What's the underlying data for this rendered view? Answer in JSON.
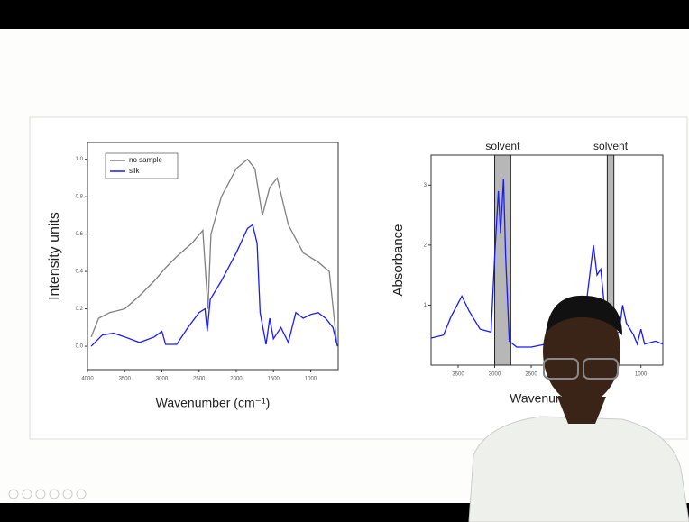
{
  "chart_data": [
    {
      "type": "line",
      "xlabel": "Wavenumber (cm⁻¹)",
      "ylabel": "Intensity units",
      "xlim": [
        4000,
        630
      ],
      "ylim": [
        -0.125,
        1.09
      ],
      "xticks": [
        4000,
        3500,
        3000,
        2500,
        2000,
        1500,
        1000
      ],
      "yticks": [
        {
          "value": 0,
          "label": "0.0"
        },
        0.2,
        0.4,
        0.6,
        0.8,
        {
          "value": 1,
          "label": "1.0"
        }
      ],
      "legend": "top-left",
      "series": [
        {
          "name": "no sample",
          "color": "#808080",
          "x": [
            3950,
            3850,
            3700,
            3500,
            3300,
            3100,
            2950,
            2800,
            2600,
            2450,
            2380,
            2340,
            2200,
            2000,
            1850,
            1750,
            1650,
            1550,
            1450,
            1300,
            1100,
            900,
            750,
            650
          ],
          "values": [
            0.05,
            0.15,
            0.18,
            0.2,
            0.27,
            0.35,
            0.42,
            0.48,
            0.55,
            0.62,
            0.2,
            0.6,
            0.8,
            0.95,
            1.0,
            0.95,
            0.7,
            0.85,
            0.9,
            0.65,
            0.5,
            0.45,
            0.4,
            0.02
          ]
        },
        {
          "name": "silk",
          "color": "#1a1aff",
          "x": [
            3950,
            3800,
            3650,
            3500,
            3300,
            3100,
            3000,
            2950,
            2800,
            2650,
            2500,
            2420,
            2390,
            2350,
            2200,
            2000,
            1850,
            1780,
            1720,
            1680,
            1600,
            1550,
            1500,
            1400,
            1300,
            1200,
            1100,
            1000,
            900,
            800,
            700,
            640
          ],
          "values": [
            0.0,
            0.06,
            0.07,
            0.05,
            0.02,
            0.05,
            0.08,
            0.01,
            0.01,
            0.1,
            0.18,
            0.2,
            0.08,
            0.25,
            0.35,
            0.5,
            0.63,
            0.65,
            0.55,
            0.18,
            0.01,
            0.15,
            0.04,
            0.1,
            0.02,
            0.18,
            0.15,
            0.17,
            0.18,
            0.15,
            0.1,
            0.0
          ]
        }
      ]
    },
    {
      "type": "line",
      "xlabel": "Wavenumber",
      "ylabel": "Absorbance",
      "xlim": [
        3870,
        700
      ],
      "ylim": [
        0,
        3.5
      ],
      "xticks": [
        3500,
        3000,
        2500,
        1000
      ],
      "yticks": [
        1,
        2,
        3
      ],
      "bands": [
        {
          "label": "solvent",
          "range": [
            3000,
            2780
          ]
        },
        {
          "label": "solvent",
          "range": [
            1460,
            1370
          ]
        }
      ],
      "series": [
        {
          "color": "#1a1aff",
          "x": [
            3870,
            3700,
            3600,
            3450,
            3350,
            3200,
            3050,
            3000,
            2950,
            2920,
            2880,
            2850,
            2800,
            2700,
            2500,
            2300,
            2100,
            1900,
            1750,
            1700,
            1650,
            1600,
            1550,
            1500,
            1450,
            1400,
            1300,
            1250,
            1200,
            1100,
            1050,
            1000,
            950,
            800,
            700
          ],
          "values": [
            0.45,
            0.5,
            0.8,
            1.15,
            0.9,
            0.6,
            0.55,
            1.8,
            2.9,
            2.2,
            3.1,
            1.8,
            0.4,
            0.3,
            0.3,
            0.35,
            0.4,
            0.45,
            1.0,
            1.5,
            2.0,
            1.5,
            1.6,
            1.0,
            0.6,
            0.5,
            0.55,
            1.0,
            0.7,
            0.5,
            0.35,
            0.6,
            0.35,
            0.4,
            0.35
          ]
        }
      ]
    }
  ]
}
